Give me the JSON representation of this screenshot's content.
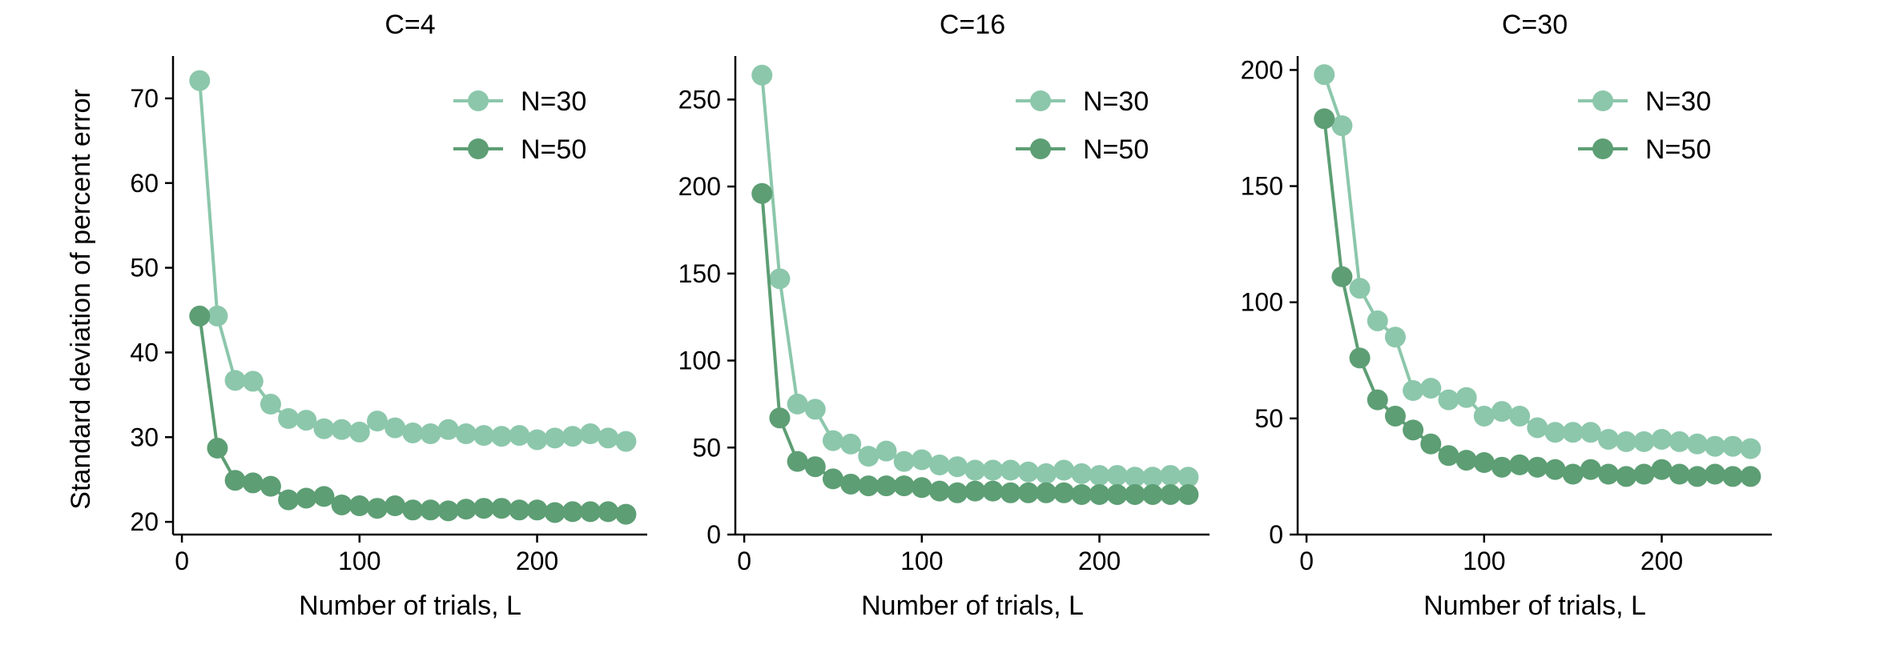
{
  "chart_data": [
    {
      "type": "line",
      "title": "C=4",
      "xlabel": "Number of trials, L",
      "ylabel": "Standard deviation of percent error",
      "xlim": [
        -5,
        262
      ],
      "ylim": [
        18.5,
        75
      ],
      "xticks": [
        0,
        100,
        200
      ],
      "yticks": [
        20,
        30,
        40,
        50,
        60,
        70
      ],
      "legend_position": "top-right",
      "x": [
        10,
        20,
        30,
        40,
        50,
        60,
        70,
        80,
        90,
        100,
        110,
        120,
        130,
        140,
        150,
        160,
        170,
        180,
        190,
        200,
        210,
        220,
        230,
        240,
        250
      ],
      "series": [
        {
          "name": "N=30",
          "color": "#8cc7ab",
          "values": [
            72.1,
            44.3,
            36.7,
            36.6,
            33.9,
            32.2,
            32.0,
            31.0,
            30.9,
            30.6,
            31.9,
            31.1,
            30.5,
            30.4,
            30.9,
            30.4,
            30.2,
            30.1,
            30.2,
            29.7,
            29.9,
            30.1,
            30.4,
            29.9,
            29.5
          ]
        },
        {
          "name": "N=50",
          "color": "#5d9e74",
          "values": [
            44.3,
            28.7,
            24.9,
            24.6,
            24.2,
            22.6,
            22.8,
            23.0,
            22.0,
            21.9,
            21.6,
            21.9,
            21.4,
            21.4,
            21.3,
            21.5,
            21.6,
            21.6,
            21.4,
            21.4,
            21.1,
            21.2,
            21.2,
            21.2,
            20.9
          ]
        }
      ]
    },
    {
      "type": "line",
      "title": "C=16",
      "xlabel": "Number of trials, L",
      "ylabel": "",
      "xlim": [
        -5,
        262
      ],
      "ylim": [
        0,
        275
      ],
      "xticks": [
        0,
        100,
        200
      ],
      "yticks": [
        0,
        50,
        100,
        150,
        200,
        250
      ],
      "legend_position": "top-right",
      "x": [
        10,
        20,
        30,
        40,
        50,
        60,
        70,
        80,
        90,
        100,
        110,
        120,
        130,
        140,
        150,
        160,
        170,
        180,
        190,
        200,
        210,
        220,
        230,
        240,
        250
      ],
      "series": [
        {
          "name": "N=30",
          "color": "#8cc7ab",
          "values": [
            264,
            147,
            75,
            72,
            54,
            52,
            45,
            48,
            42,
            43,
            40,
            39,
            37,
            37,
            37,
            36,
            35,
            37,
            35,
            34,
            34,
            33,
            33,
            34,
            33
          ]
        },
        {
          "name": "N=50",
          "color": "#5d9e74",
          "values": [
            196,
            67,
            42,
            39,
            32,
            29,
            28,
            28,
            28,
            27,
            25,
            24,
            25,
            25,
            24,
            24,
            24,
            24,
            23,
            23,
            23,
            23,
            23,
            23,
            23
          ]
        }
      ]
    },
    {
      "type": "line",
      "title": "C=30",
      "xlabel": "Number of trials, L",
      "ylabel": "",
      "xlim": [
        -5,
        262
      ],
      "ylim": [
        0,
        206
      ],
      "xticks": [
        0,
        100,
        200
      ],
      "yticks": [
        0,
        50,
        100,
        150,
        200
      ],
      "legend_position": "top-right",
      "x": [
        10,
        20,
        30,
        40,
        50,
        60,
        70,
        80,
        90,
        100,
        110,
        120,
        130,
        140,
        150,
        160,
        170,
        180,
        190,
        200,
        210,
        220,
        230,
        240,
        250
      ],
      "series": [
        {
          "name": "N=30",
          "color": "#8cc7ab",
          "values": [
            198,
            176,
            106,
            92,
            85,
            62,
            63,
            58,
            59,
            51,
            53,
            51,
            46,
            44,
            44,
            44,
            41,
            40,
            40,
            41,
            40,
            39,
            38,
            38,
            37
          ]
        },
        {
          "name": "N=50",
          "color": "#5d9e74",
          "values": [
            179,
            111,
            76,
            58,
            51,
            45,
            39,
            34,
            32,
            31,
            29,
            30,
            29,
            28,
            26,
            28,
            26,
            25,
            26,
            28,
            26,
            25,
            26,
            25,
            25
          ]
        }
      ]
    }
  ]
}
